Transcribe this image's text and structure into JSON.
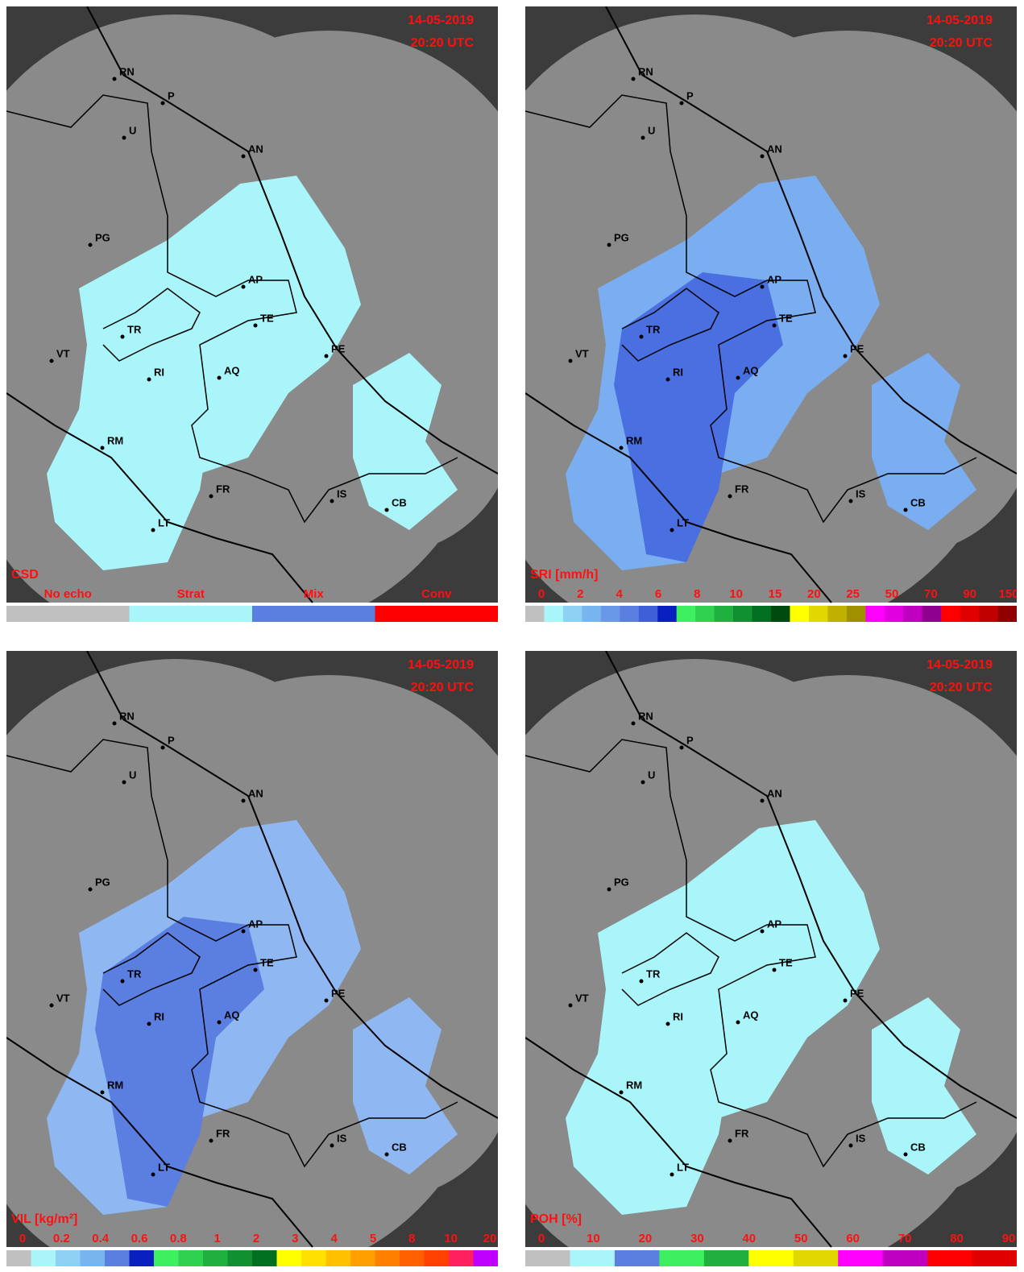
{
  "date": "14-05-2019",
  "time": "20:20 UTC",
  "cities": [
    "RN",
    "P",
    "U",
    "AN",
    "PG",
    "AP",
    "TR",
    "TE",
    "VT",
    "PE",
    "RI",
    "AQ",
    "RM",
    "FR",
    "IS",
    "CB",
    "LT"
  ],
  "panels": [
    {
      "legend_title": "CSD",
      "labels": [
        "No echo",
        "Strat",
        "Mix",
        "Conv"
      ],
      "colorbar": [
        "#c0c0c0",
        "#aaf5fa",
        "#5b7fe0",
        "#ff0000"
      ],
      "rain_color": "#aaf5fa",
      "core_color": "#aaf5fa"
    },
    {
      "legend_title": "SRI [mm/h]",
      "labels": [
        "0",
        "2",
        "4",
        "6",
        "8",
        "10",
        "15",
        "20",
        "25",
        "50",
        "70",
        "90",
        "150"
      ],
      "colorbar": [
        "#c0c0c0",
        "#aaf5fa",
        "#8fd0f5",
        "#78b4ee",
        "#6a98e8",
        "#5b7fe0",
        "#3f5fd8",
        "#0a1fc0",
        "#3cf060",
        "#30d050",
        "#20b040",
        "#109030",
        "#007020",
        "#004a10",
        "#ffff00",
        "#e0d800",
        "#c0b000",
        "#a09000",
        "#ff00ff",
        "#e000e0",
        "#c000c0",
        "#900090",
        "#ff0000",
        "#e00000",
        "#c00000",
        "#900000"
      ],
      "rain_color": "#7aaef0",
      "core_color": "#4a6fe0"
    },
    {
      "legend_title": "VIL [kg/m²]",
      "labels": [
        "0",
        "0.2",
        "0.4",
        "0.6",
        "0.8",
        "1",
        "2",
        "3",
        "4",
        "5",
        "8",
        "10",
        "20"
      ],
      "colorbar": [
        "#c0c0c0",
        "#aaf5fa",
        "#8fd0f5",
        "#78b4ee",
        "#5b7fe0",
        "#0a1fc0",
        "#3cf060",
        "#30d050",
        "#20b040",
        "#109030",
        "#007020",
        "#ffff00",
        "#ffe000",
        "#ffc000",
        "#ffa000",
        "#ff8000",
        "#ff6000",
        "#ff4000",
        "#ff2060",
        "#c000ff"
      ],
      "rain_color": "#8fb8f2",
      "core_color": "#5b7fe0"
    },
    {
      "legend_title": "POH [%]",
      "labels": [
        "0",
        "10",
        "20",
        "30",
        "40",
        "50",
        "60",
        "70",
        "80",
        "90"
      ],
      "colorbar": [
        "#c0c0c0",
        "#aaf5fa",
        "#5b7fe0",
        "#3cf060",
        "#20b040",
        "#ffff00",
        "#e0d800",
        "#ff00ff",
        "#c000c0",
        "#ff0000",
        "#e00000"
      ],
      "rain_color": "#aaf5fa",
      "core_color": "#aaf5fa"
    }
  ]
}
